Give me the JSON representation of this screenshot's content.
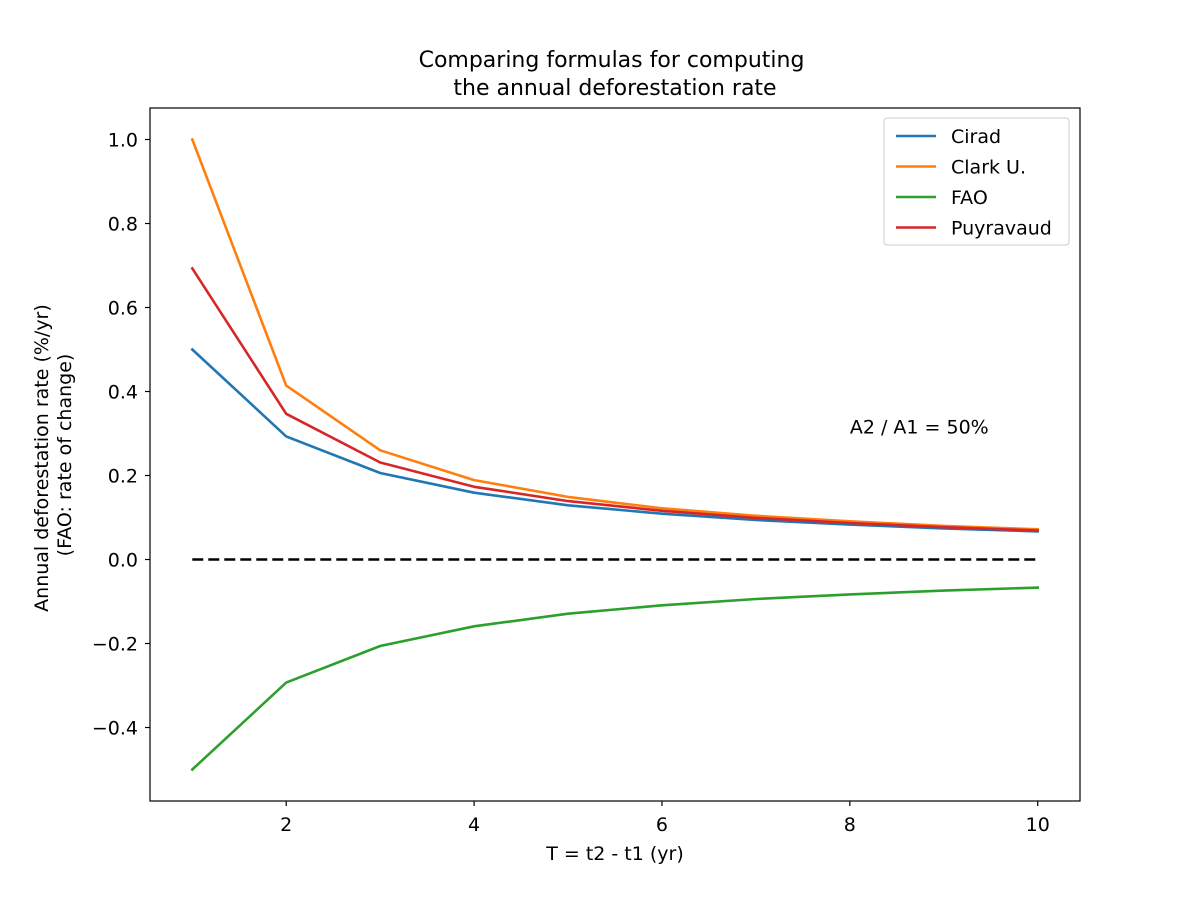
{
  "chart_data": {
    "type": "line",
    "title": "Comparing formulas for computing\nthe annual deforestation rate",
    "xlabel": "T = t2 - t1 (yr)",
    "ylabel": "Annual deforestation rate (%/yr)\n(FAO: rate of change)",
    "xlim": [
      0.55,
      10.45
    ],
    "ylim": [
      -0.575,
      1.075
    ],
    "xticks": [
      2,
      4,
      6,
      8,
      10
    ],
    "xtick_labels": [
      "2",
      "4",
      "6",
      "8",
      "10"
    ],
    "yticks": [
      -0.4,
      -0.2,
      0.0,
      0.2,
      0.4,
      0.6,
      0.8,
      1.0
    ],
    "ytick_labels": [
      "−0.4",
      "−0.2",
      "0.0",
      "0.2",
      "0.4",
      "0.6",
      "0.8",
      "1.0"
    ],
    "grid": false,
    "legend_position": "top-right",
    "x": [
      1,
      2,
      3,
      4,
      5,
      6,
      7,
      8,
      9,
      10
    ],
    "series": [
      {
        "name": "Cirad",
        "color": "#1f77b4",
        "values": [
          0.5,
          0.293,
          0.206,
          0.159,
          0.129,
          0.109,
          0.094,
          0.083,
          0.074,
          0.067
        ]
      },
      {
        "name": "Clark U.",
        "color": "#ff7f0e",
        "values": [
          1.0,
          0.414,
          0.26,
          0.189,
          0.149,
          0.122,
          0.104,
          0.091,
          0.08,
          0.072
        ]
      },
      {
        "name": "FAO",
        "color": "#2ca02c",
        "values": [
          -0.5,
          -0.293,
          -0.206,
          -0.159,
          -0.129,
          -0.109,
          -0.094,
          -0.083,
          -0.074,
          -0.067
        ]
      },
      {
        "name": "Puyravaud",
        "color": "#d62728",
        "values": [
          0.693,
          0.347,
          0.231,
          0.173,
          0.139,
          0.116,
          0.099,
          0.087,
          0.077,
          0.069
        ]
      }
    ],
    "reference_line": {
      "y": 0.0,
      "x_from": 1,
      "x_to": 10,
      "style": "dashed",
      "color": "#000000"
    },
    "annotation": {
      "text": "A2 / A1 = 50%",
      "x": 8,
      "y": 0.3
    }
  }
}
